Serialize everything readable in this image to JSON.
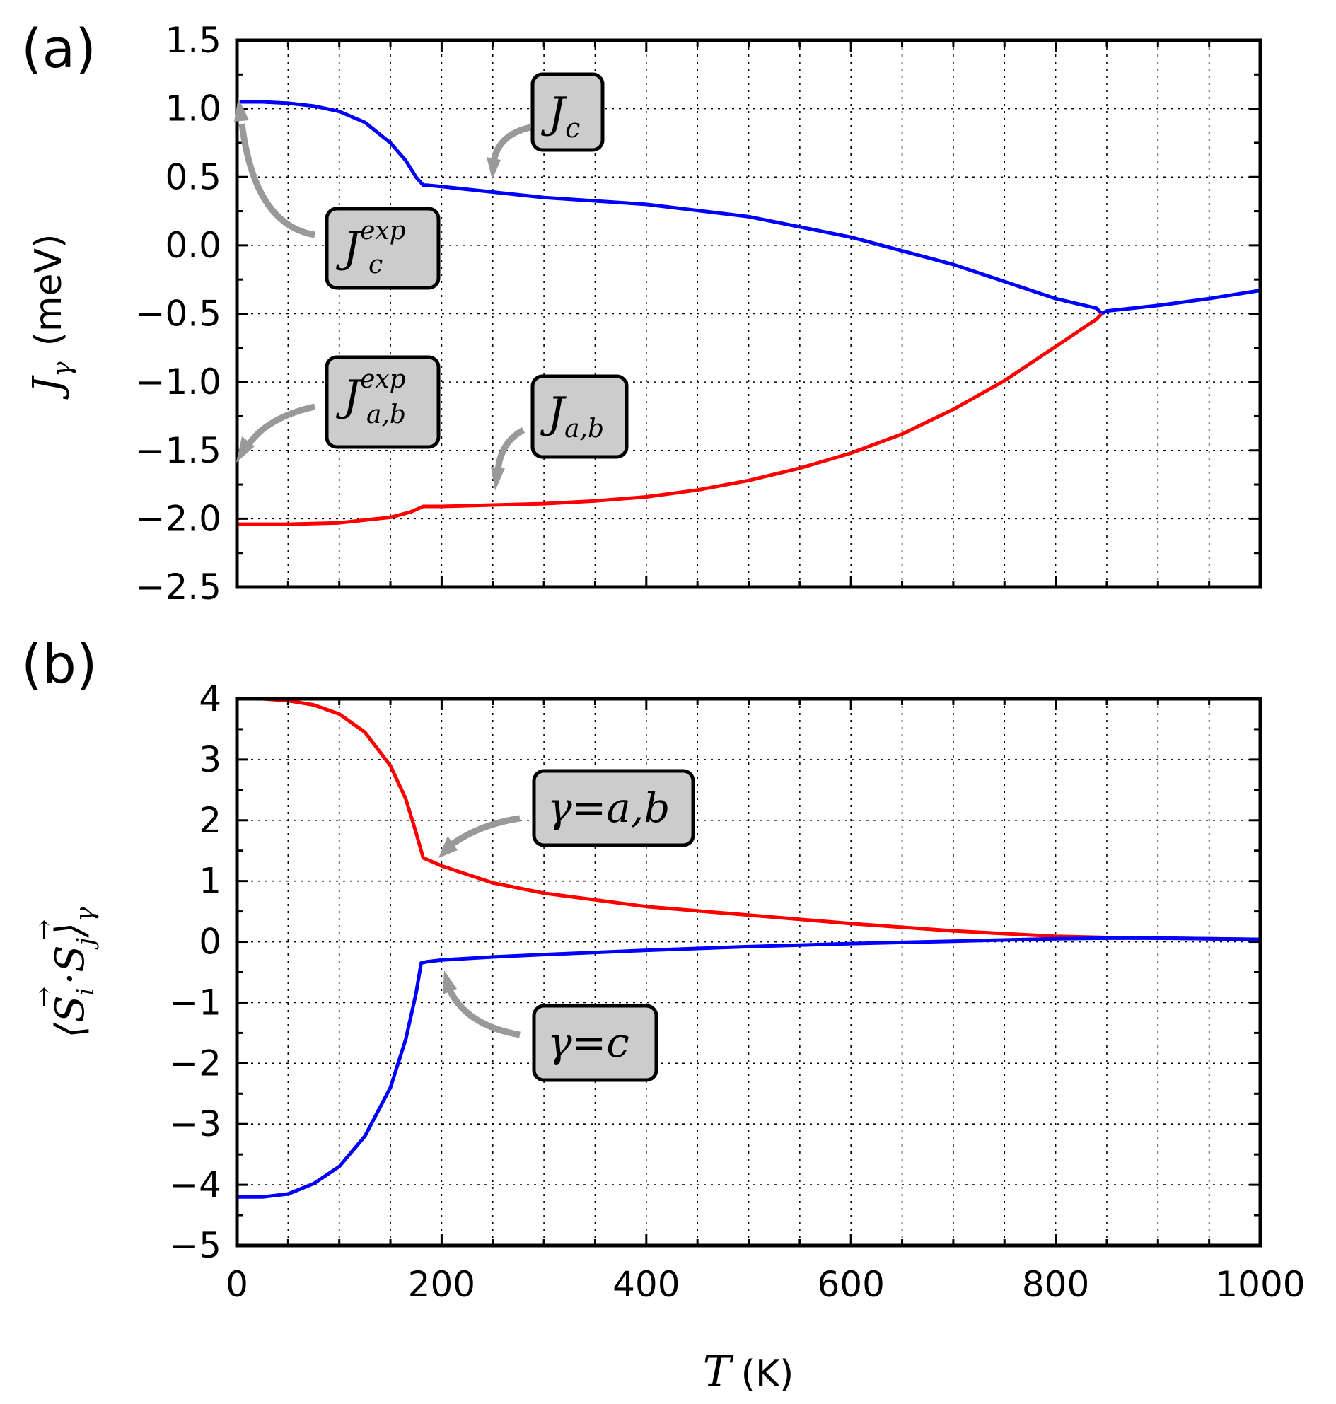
{
  "chart_data": [
    {
      "panel_label": "(a)",
      "type": "line",
      "xlim": [
        0,
        1000
      ],
      "ylim": [
        -2.5,
        1.5
      ],
      "x_ticks": [
        0,
        200,
        400,
        600,
        800,
        1000
      ],
      "y_ticks": [
        1.5,
        1.0,
        0.5,
        0.0,
        -0.5,
        -1.0,
        -1.5,
        -2.0,
        -2.5
      ],
      "y_tick_labels": [
        "1.5",
        "1.0",
        "0.5",
        "0.0",
        "−0.5",
        "−1.0",
        "−1.5",
        "−2.0",
        "−2.5"
      ],
      "ylabel_symbol": "J",
      "ylabel_subscript": "γ",
      "ylabel_unit": "(meV)",
      "grid": true,
      "series": [
        {
          "name": "J_c",
          "color": "#0000ff",
          "x": [
            0,
            25,
            50,
            75,
            100,
            125,
            150,
            165,
            175,
            182,
            185,
            200,
            250,
            300,
            400,
            500,
            600,
            700,
            800,
            840,
            845,
            850,
            900,
            950,
            1000
          ],
          "y": [
            1.05,
            1.05,
            1.04,
            1.02,
            0.98,
            0.9,
            0.75,
            0.62,
            0.5,
            0.44,
            0.44,
            0.43,
            0.39,
            0.35,
            0.3,
            0.21,
            0.06,
            -0.14,
            -0.39,
            -0.46,
            -0.5,
            -0.48,
            -0.44,
            -0.39,
            -0.33
          ]
        },
        {
          "name": "J_a,b",
          "color": "#ff0000",
          "x": [
            0,
            50,
            100,
            150,
            170,
            182,
            185,
            200,
            250,
            300,
            350,
            400,
            450,
            500,
            550,
            600,
            650,
            700,
            750,
            800,
            840,
            845
          ],
          "y": [
            -2.04,
            -2.04,
            -2.03,
            -1.99,
            -1.95,
            -1.91,
            -1.91,
            -1.91,
            -1.9,
            -1.89,
            -1.87,
            -1.84,
            -1.79,
            -1.72,
            -1.63,
            -1.52,
            -1.38,
            -1.2,
            -0.99,
            -0.74,
            -0.54,
            -0.5
          ]
        }
      ],
      "annotations": [
        {
          "main": "J",
          "sub": "c",
          "sup": ""
        },
        {
          "main": "J",
          "sub": "c",
          "sup": "exp"
        },
        {
          "main": "J",
          "sub": "a,b",
          "sup": "exp"
        },
        {
          "main": "J",
          "sub": "a,b",
          "sup": ""
        }
      ]
    },
    {
      "panel_label": "(b)",
      "type": "line",
      "xlim": [
        0,
        1000
      ],
      "ylim": [
        -5,
        4
      ],
      "x_ticks": [
        0,
        200,
        400,
        600,
        800,
        1000
      ],
      "x_tick_labels": [
        "0",
        "200",
        "400",
        "600",
        "800",
        "1000"
      ],
      "y_ticks": [
        4,
        3,
        2,
        1,
        0,
        -1,
        -2,
        -3,
        -4,
        -5
      ],
      "y_tick_labels": [
        "4",
        "3",
        "2",
        "1",
        "0",
        "−1",
        "−2",
        "−3",
        "−4",
        "−5"
      ],
      "ylabel_left": "⟨",
      "ylabel_S": "S",
      "ylabel_arrow": "→",
      "ylabel_i": "i",
      "ylabel_dot": "·",
      "ylabel_j": "j",
      "ylabel_right": "⟩",
      "ylabel_sub": "γ",
      "xlabel_symbol": "T",
      "xlabel_unit": "(K)",
      "grid": true,
      "series": [
        {
          "name": "γ=a,b",
          "color": "#ff0000",
          "x": [
            0,
            25,
            50,
            75,
            100,
            125,
            150,
            165,
            175,
            182,
            185,
            200,
            250,
            300,
            400,
            500,
            600,
            700,
            800,
            850,
            900,
            1000
          ],
          "y": [
            4.0,
            4.0,
            3.97,
            3.9,
            3.75,
            3.45,
            2.9,
            2.35,
            1.8,
            1.38,
            1.36,
            1.25,
            0.97,
            0.8,
            0.58,
            0.44,
            0.3,
            0.18,
            0.09,
            0.07,
            0.06,
            0.04
          ]
        },
        {
          "name": "γ=c",
          "color": "#0000ff",
          "x": [
            0,
            25,
            50,
            75,
            100,
            125,
            150,
            165,
            175,
            180,
            185,
            200,
            250,
            300,
            400,
            500,
            600,
            700,
            800,
            850,
            900,
            1000
          ],
          "y": [
            -4.2,
            -4.2,
            -4.15,
            -3.98,
            -3.7,
            -3.2,
            -2.4,
            -1.6,
            -0.85,
            -0.35,
            -0.33,
            -0.3,
            -0.25,
            -0.21,
            -0.14,
            -0.08,
            -0.03,
            0.01,
            0.05,
            0.06,
            0.06,
            0.04
          ]
        }
      ],
      "annotations": [
        {
          "gamma": "γ",
          "eq": "=",
          "value": "a,b"
        },
        {
          "gamma": "γ",
          "eq": "=",
          "value": "c"
        }
      ]
    }
  ]
}
